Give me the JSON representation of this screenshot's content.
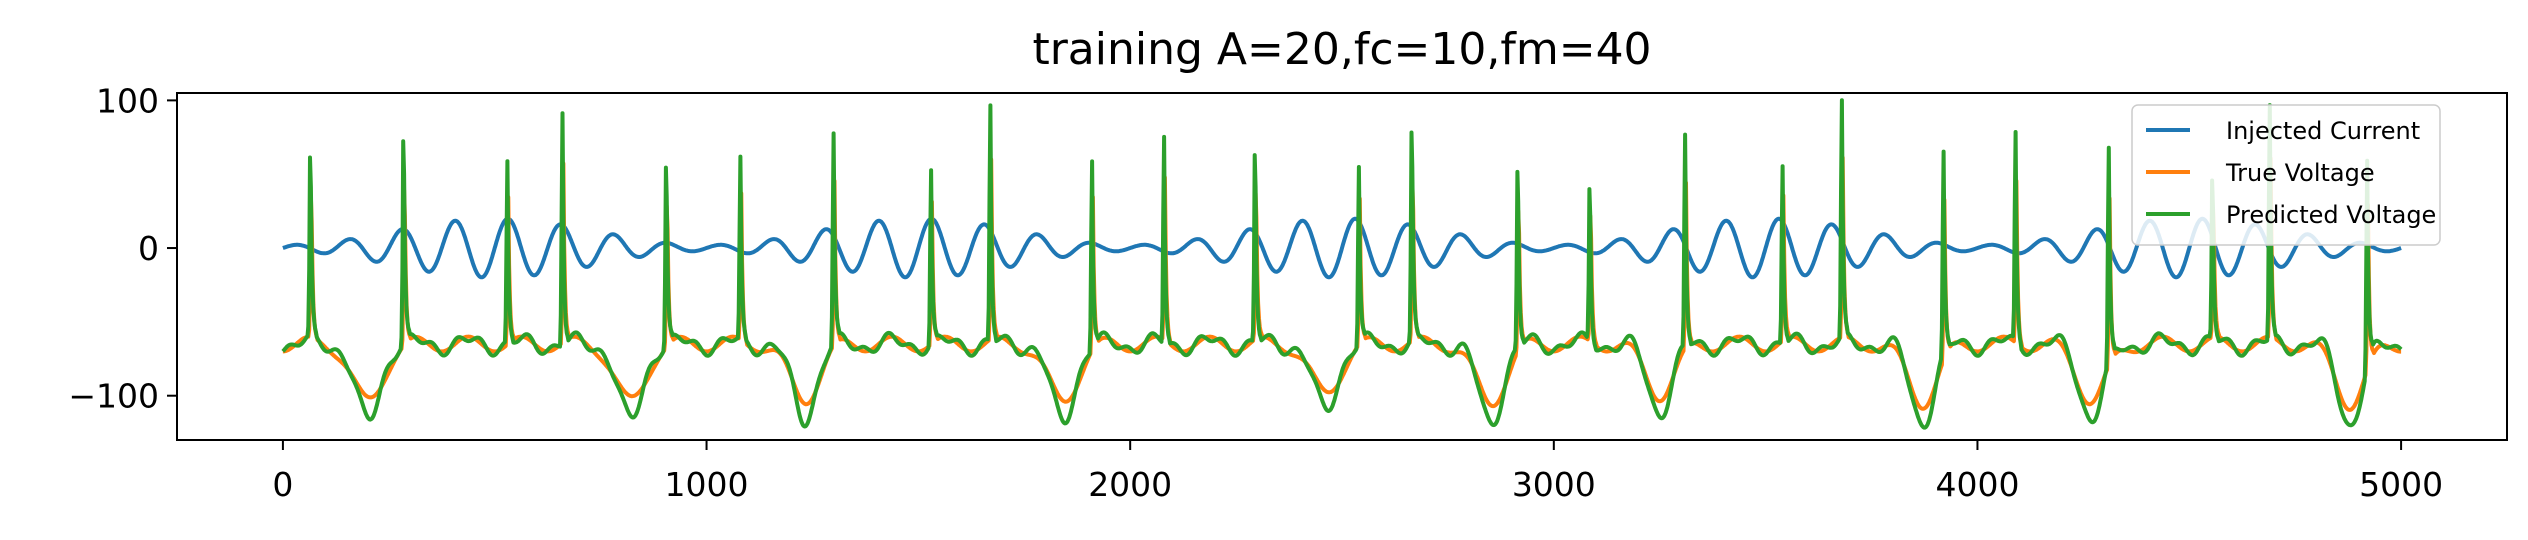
{
  "chart_data": {
    "type": "line",
    "title": "training A=20,fc=10,fm=40",
    "xlabel": "",
    "ylabel": "",
    "xlim": [
      -250,
      5250
    ],
    "ylim": [
      -130,
      105
    ],
    "x_ticks": [
      0,
      1000,
      2000,
      3000,
      4000,
      5000
    ],
    "x_tick_labels": [
      "0",
      "1000",
      "2000",
      "3000",
      "4000",
      "5000"
    ],
    "y_ticks": [
      100,
      0,
      -100
    ],
    "y_tick_labels": [
      "100",
      "0",
      "−100"
    ],
    "grid": false,
    "legend_position": "upper-right",
    "x_range": [
      0,
      5000
    ],
    "spike_times": [
      65,
      285,
      530,
      660,
      905,
      1080,
      1300,
      1530,
      1670,
      1910,
      2080,
      2295,
      2540,
      2665,
      2915,
      3085,
      3310,
      3540,
      3680,
      3920,
      4090,
      4310,
      4555,
      4690,
      4920
    ],
    "spike_peaks": [
      70,
      90,
      57,
      93,
      72,
      57,
      76,
      52,
      94,
      63,
      75,
      78,
      55,
      93,
      70,
      52,
      77,
      55,
      94,
      70,
      75,
      78,
      56,
      93,
      75
    ],
    "trough_times": [
      200,
      820,
      1230,
      1840,
      2460,
      2850,
      3250,
      3870,
      4270,
      4880
    ],
    "trough_values": [
      -118,
      -118,
      -115,
      -117,
      -110,
      -118,
      -110,
      -117,
      -115,
      -118
    ],
    "series": [
      {
        "name": "Injected Current",
        "color": "#1f77b4",
        "model": "20*sin(2*pi*t/1000) * sin(2*pi*t/80)-ish envelope, carrier period ~125, amplitude 0..20",
        "amplitude": 20,
        "carrier_period": 125,
        "envelope_period": 1000
      },
      {
        "name": "True Voltage",
        "color": "#ff7f0e",
        "rest": -65
      },
      {
        "name": "Predicted Voltage",
        "color": "#2ca02c",
        "rest": -65
      }
    ]
  }
}
